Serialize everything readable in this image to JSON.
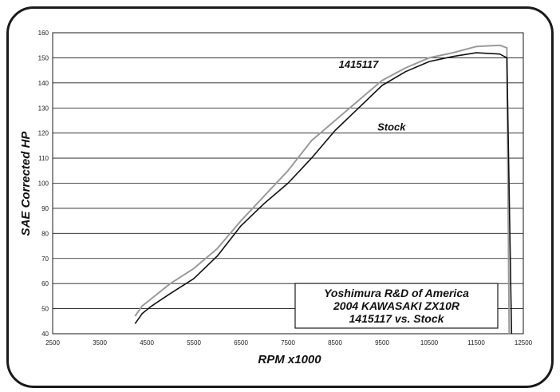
{
  "chart_data": {
    "type": "line",
    "title": "",
    "xlabel": "RPM x1000",
    "ylabel": "SAE Corrected HP",
    "xlim": [
      2500,
      12500
    ],
    "ylim": [
      40,
      160
    ],
    "x_ticks": [
      "2500",
      "3500",
      "4500",
      "5500",
      "6500",
      "7500",
      "8500",
      "9500",
      "10500",
      "11500",
      "12500"
    ],
    "y_ticks": [
      "40",
      "50",
      "60",
      "70",
      "80",
      "90",
      "100",
      "110",
      "120",
      "130",
      "140",
      "150",
      "160"
    ],
    "grid": "horizontal",
    "series": [
      {
        "name": "1415117",
        "color": "#9a9a9a",
        "points": [
          [
            4250,
            47
          ],
          [
            4400,
            51
          ],
          [
            4600,
            54
          ],
          [
            5000,
            60
          ],
          [
            5500,
            66
          ],
          [
            6000,
            74
          ],
          [
            6500,
            85
          ],
          [
            7000,
            95
          ],
          [
            7500,
            105
          ],
          [
            8000,
            117
          ],
          [
            8500,
            125
          ],
          [
            9000,
            133
          ],
          [
            9500,
            141
          ],
          [
            10000,
            146
          ],
          [
            10500,
            150
          ],
          [
            11000,
            152
          ],
          [
            11500,
            154.5
          ],
          [
            12000,
            155
          ],
          [
            12150,
            154
          ],
          [
            12200,
            40
          ]
        ]
      },
      {
        "name": "Stock",
        "color": "#111111",
        "points": [
          [
            4250,
            44
          ],
          [
            4400,
            48
          ],
          [
            4600,
            51
          ],
          [
            5000,
            56
          ],
          [
            5500,
            62
          ],
          [
            6000,
            71
          ],
          [
            6500,
            83
          ],
          [
            7000,
            92
          ],
          [
            7500,
            100
          ],
          [
            8000,
            110
          ],
          [
            8500,
            121
          ],
          [
            9000,
            130
          ],
          [
            9500,
            139
          ],
          [
            10000,
            144.5
          ],
          [
            10500,
            148.5
          ],
          [
            11000,
            150.5
          ],
          [
            11500,
            152
          ],
          [
            12000,
            151.5
          ],
          [
            12150,
            150
          ],
          [
            12250,
            40
          ]
        ]
      }
    ],
    "annotations": [
      {
        "series": "1415117",
        "text": "1415117",
        "at": [
          9000,
          146
        ]
      },
      {
        "series": "Stock",
        "text": "Stock",
        "at": [
          9700,
          121
        ]
      }
    ],
    "note": [
      "Yoshimura R&D of America",
      "2004 KAWASAKI ZX10R",
      "1415117 vs. Stock"
    ]
  }
}
